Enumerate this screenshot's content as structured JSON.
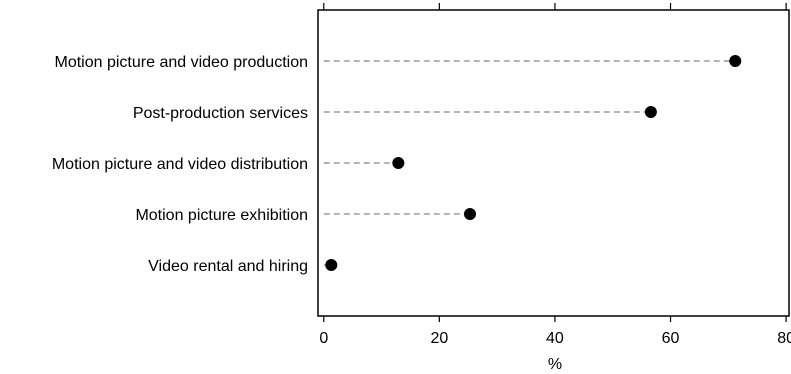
{
  "chart_data": {
    "type": "dot",
    "categories": [
      "Motion picture and video production",
      "Post-production services",
      "Motion picture and video distribution",
      "Motion picture exhibition",
      "Video rental and hiring"
    ],
    "values": [
      71.2,
      56.6,
      12.9,
      25.3,
      1.3
    ],
    "xlabel": "%",
    "ylabel": "",
    "xlim": [
      -1,
      80.5
    ],
    "xticks": [
      0,
      20,
      40,
      60,
      80
    ],
    "xtick_labels": [
      "0",
      "20",
      "40",
      "60",
      "80"
    ],
    "grid": false,
    "leader_lines": "dashed",
    "colors": {
      "marker": "#000000",
      "leader": "#888888",
      "frame": "#000000"
    }
  }
}
